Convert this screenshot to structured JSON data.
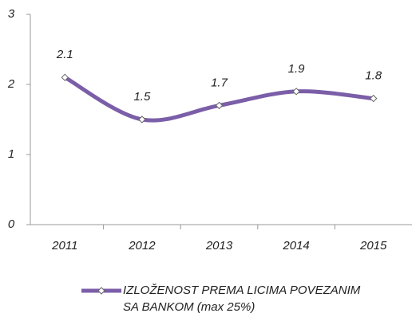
{
  "chart_data": {
    "type": "line",
    "categories": [
      "2011",
      "2012",
      "2013",
      "2014",
      "2015"
    ],
    "series": [
      {
        "name": "IZLOŽENOST PREMA LICIMA POVEZANIM SA BANKOM (max 25%)",
        "color": "#7b5ea8",
        "values": [
          2.1,
          1.5,
          1.7,
          1.9,
          1.8
        ]
      }
    ],
    "ylim": [
      0,
      3
    ],
    "yticks": [
      0,
      1,
      2,
      3
    ],
    "grid": false,
    "legend": "bottom"
  }
}
